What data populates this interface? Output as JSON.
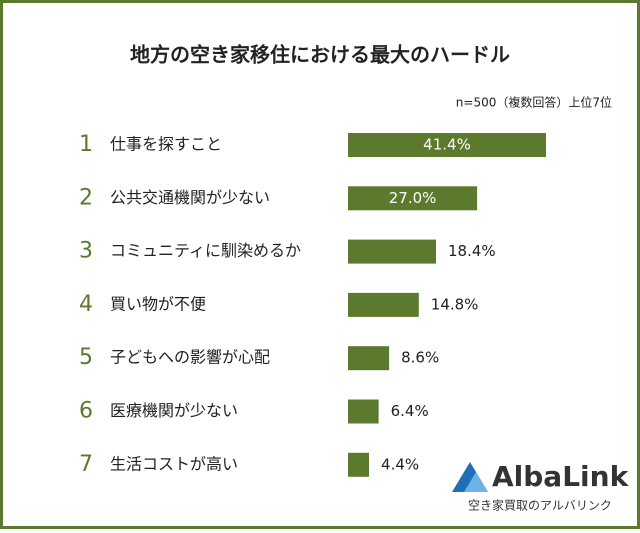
{
  "chart_data": {
    "type": "bar",
    "orientation": "horizontal",
    "title": "地方の空き家移住における最大のハードル",
    "subtitle": "n=500（複数回答）上位7位",
    "ranks": [
      "1",
      "2",
      "3",
      "4",
      "5",
      "6",
      "7"
    ],
    "categories": [
      "仕事を探すこと",
      "公共交通機関が少ない",
      "コミュニティに馴染めるか",
      "買い物が不便",
      "子どもへの影響が心配",
      "医療機関が少ない",
      "生活コストが高い"
    ],
    "values": [
      41.4,
      27.0,
      18.4,
      14.8,
      8.6,
      6.4,
      4.4
    ],
    "value_labels": [
      "41.4%",
      "27.0%",
      "18.4%",
      "14.8%",
      "8.6%",
      "6.4%",
      "4.4%"
    ],
    "color": "#5b7a2e"
  },
  "logo": {
    "name": "AlbaLink",
    "tagline": "空き家買取のアルバリンク"
  }
}
